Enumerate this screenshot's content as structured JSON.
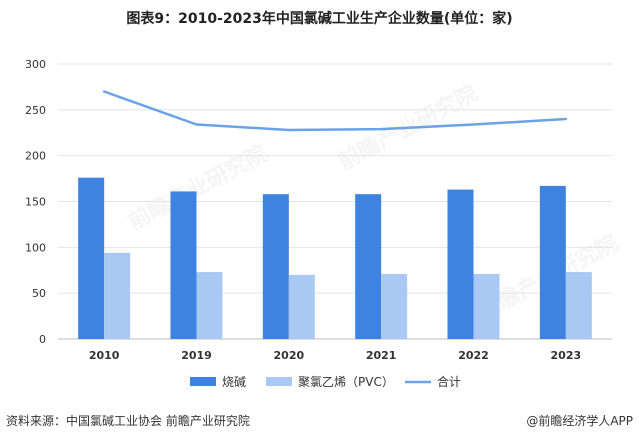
{
  "title": "图表9：2010-2023年中国氯碱工业生产企业数量(单位：家)",
  "footer": {
    "source": "资料来源：中国氯碱工业协会 前瞻产业研究院",
    "brand": "@前瞻经济学人APP"
  },
  "watermark": "前瞻产业研究院",
  "colors": {
    "bar1": "#3e83e0",
    "bar2": "#a9c9f4",
    "line": "#6aa2e8",
    "grid": "#e4e4e4",
    "axis": "#bdbdbd"
  },
  "chart_data": {
    "type": "bar",
    "categories": [
      "2010",
      "2019",
      "2020",
      "2021",
      "2022",
      "2023"
    ],
    "series": [
      {
        "name": "烧碱",
        "type": "bar",
        "values": [
          176,
          161,
          158,
          158,
          163,
          167
        ]
      },
      {
        "name": "聚氯乙烯（PVC）",
        "type": "bar",
        "values": [
          94,
          73,
          70,
          71,
          71,
          73
        ]
      },
      {
        "name": "合计",
        "type": "line",
        "values": [
          270,
          234,
          228,
          229,
          234,
          240
        ]
      }
    ],
    "yticks": [
      "0",
      "50",
      "100",
      "150",
      "200",
      "250",
      "300"
    ],
    "ylim": [
      0,
      300
    ],
    "legend_position": "bottom",
    "grid": true
  }
}
